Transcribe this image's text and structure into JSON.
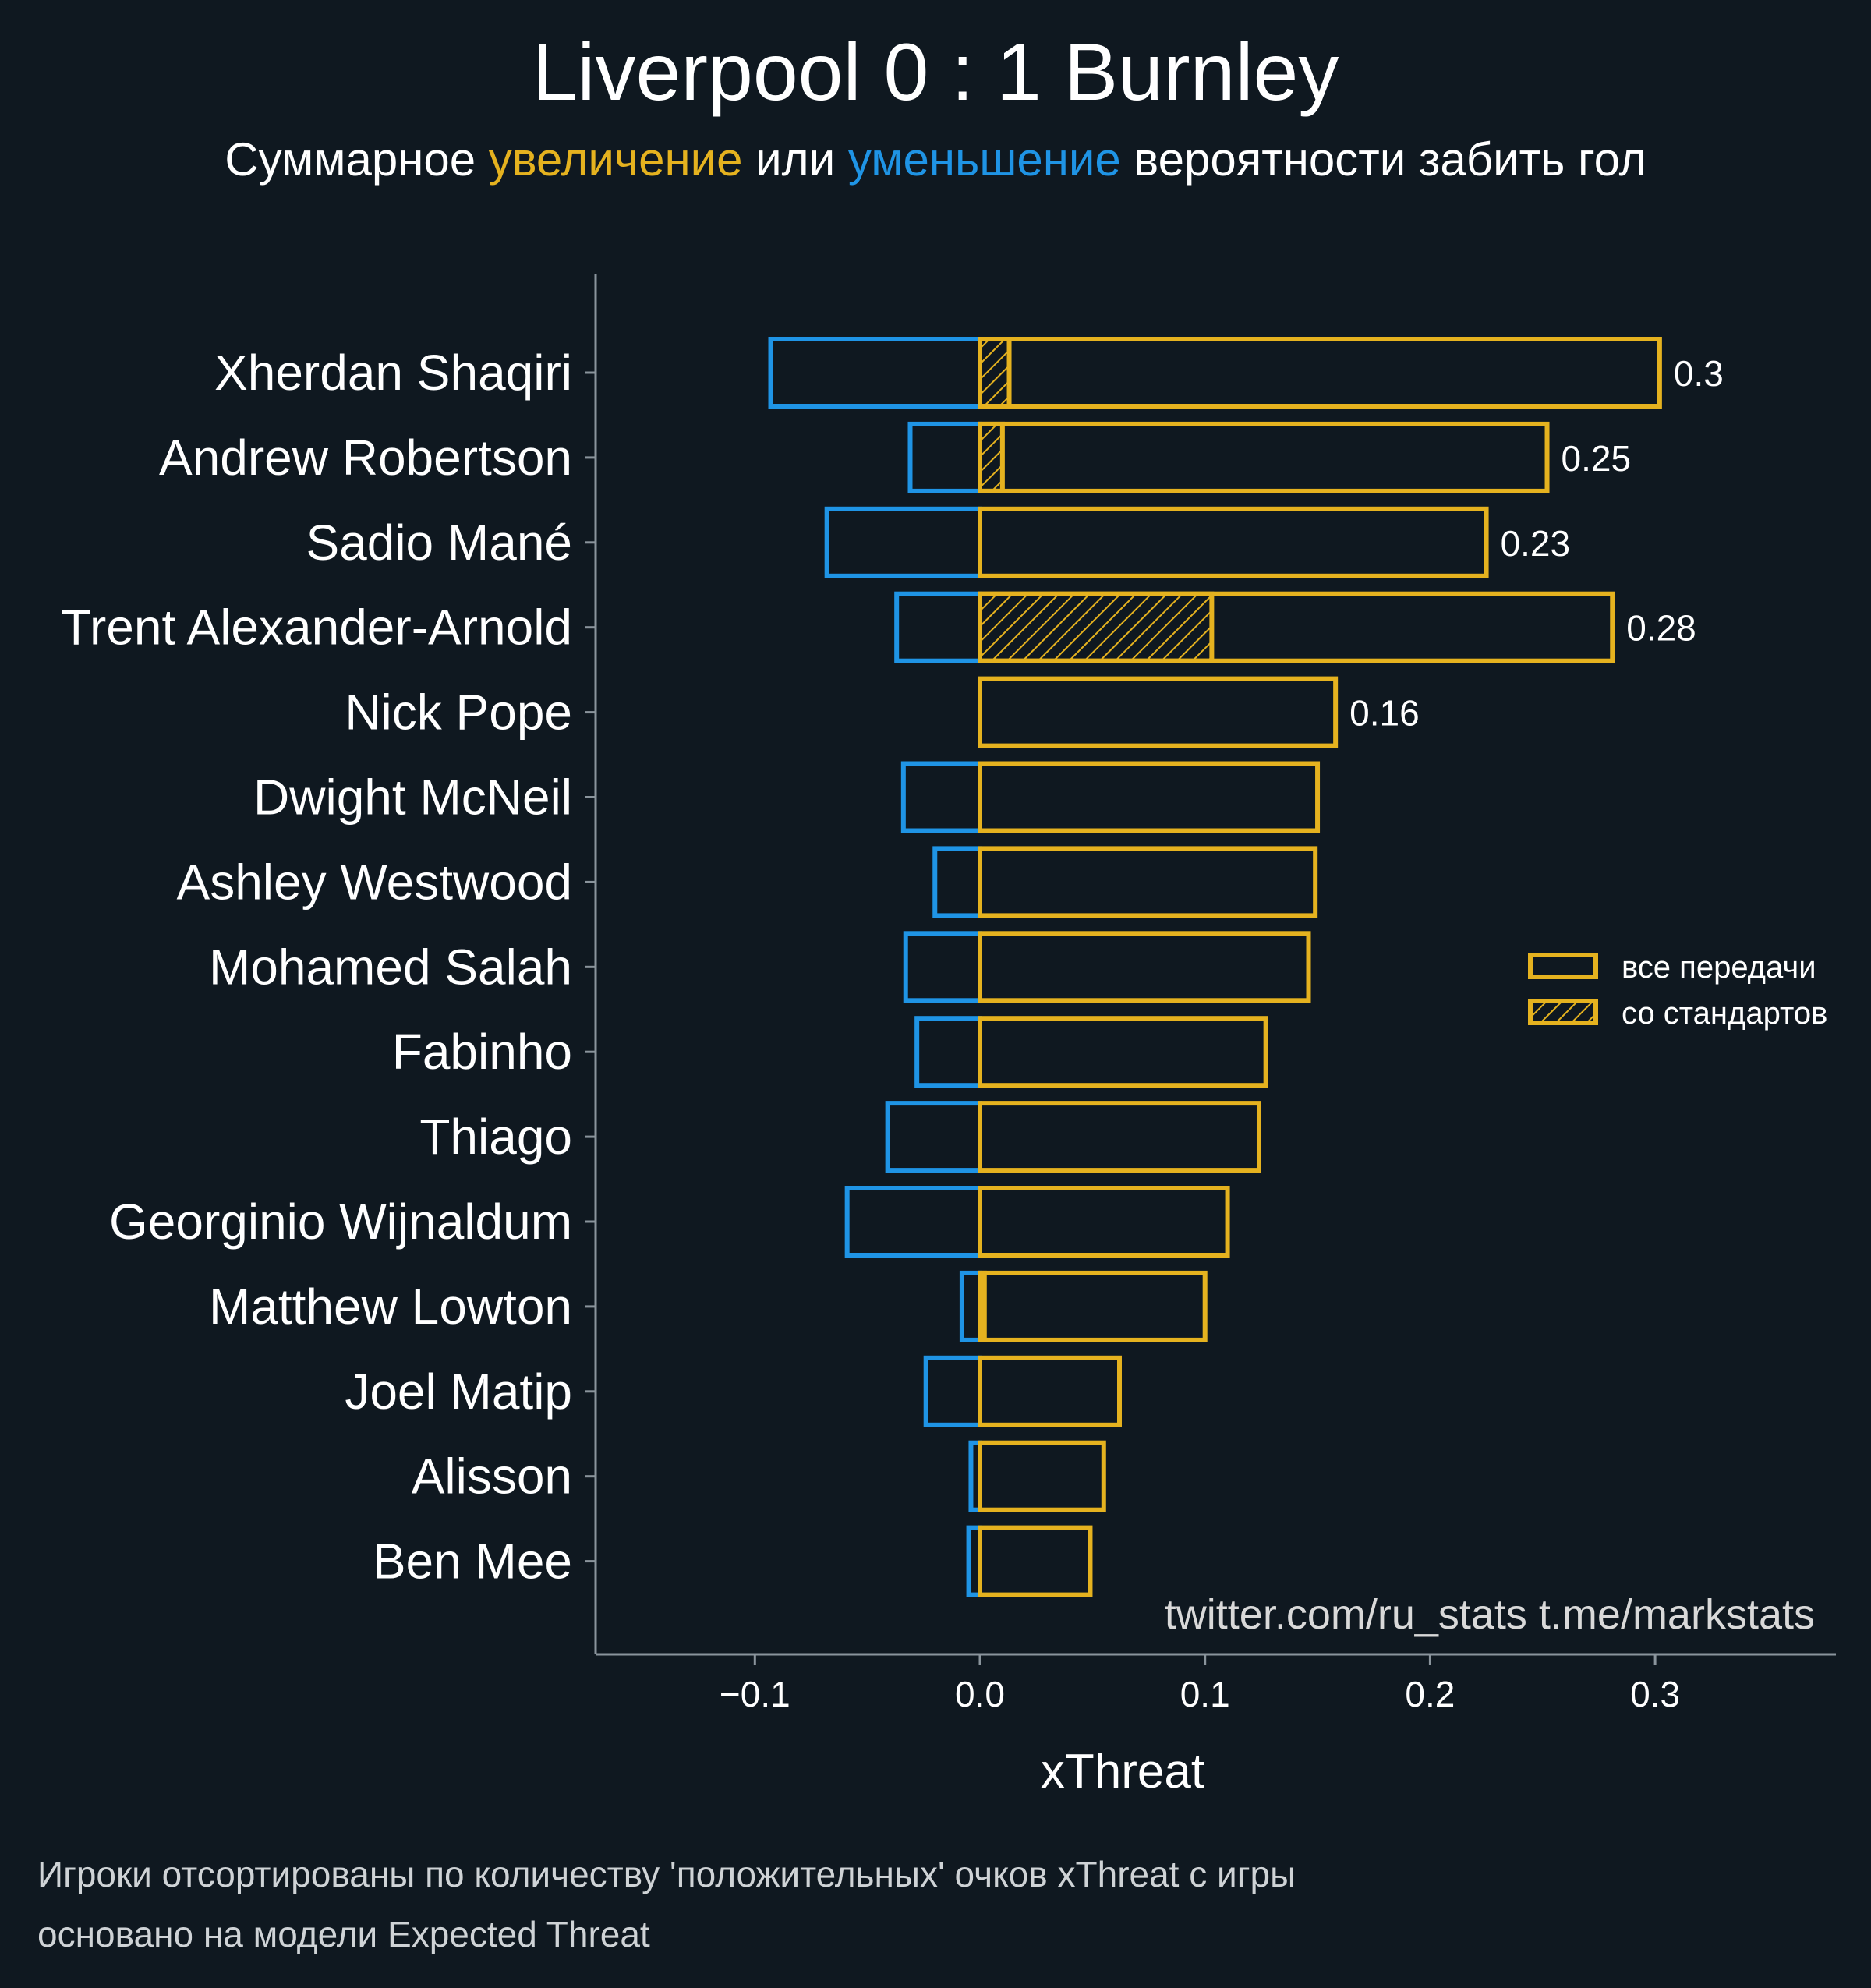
{
  "title": "Liverpool 0 : 1 Burnley",
  "subtitle": {
    "prefix": "Суммарное ",
    "increase": "увеличение",
    "middle": " или ",
    "decrease": "уменьшение",
    "suffix": " вероятности забить гол"
  },
  "colors": {
    "background": "#0f1820",
    "positive": "#e5b21f",
    "negative": "#1f94e5",
    "axis": "#8a949c",
    "text": "#ffffff"
  },
  "credit": "twitter.com/ru_stats  t.me/markstats",
  "footnote": [
    "Игроки отсортированы по количеству 'положительных' очков xThreat с игры",
    "основано на модели Expected Threat"
  ],
  "chart_data": {
    "type": "bar",
    "orientation": "horizontal",
    "xlabel": "xThreat",
    "xlim": [
      -0.17,
      0.38
    ],
    "xticks": [
      -0.1,
      0.0,
      0.1,
      0.2,
      0.3
    ],
    "xtick_labels": [
      "−0.1",
      "0.0",
      "0.1",
      "0.2",
      "0.3"
    ],
    "categories": [
      "Xherdan Shaqiri",
      "Andrew Robertson",
      "Sadio Mané",
      "Trent Alexander-Arnold",
      "Nick Pope",
      "Dwight McNeil",
      "Ashley Westwood",
      "Mohamed Salah",
      "Fabinho",
      "Thiago",
      "Georginio Wijnaldum",
      "Matthew Lowton",
      "Joel Matip",
      "Alisson",
      "Ben Mee"
    ],
    "series": [
      {
        "name": "все передачи",
        "values": [
          0.302,
          0.252,
          0.225,
          0.281,
          0.158,
          0.15,
          0.149,
          0.146,
          0.127,
          0.124,
          0.11,
          0.1,
          0.062,
          0.055,
          0.049
        ]
      },
      {
        "name": "со стандартов",
        "values": [
          0.013,
          0.01,
          0.0,
          0.103,
          0.0,
          0.0,
          0.0,
          0.0,
          0.0,
          0.0,
          0.0,
          0.002,
          0.0,
          0.0,
          0.0
        ]
      },
      {
        "values": [
          -0.093,
          -0.031,
          -0.068,
          -0.037,
          0.0,
          -0.034,
          -0.02,
          -0.033,
          -0.028,
          -0.041,
          -0.059,
          -0.008,
          -0.024,
          -0.004,
          -0.005
        ]
      }
    ],
    "data_labels": [
      "0.3",
      "0.25",
      "0.23",
      "0.28",
      "0.16",
      "",
      "",
      "",
      "",
      "",
      "",
      "",
      "",
      "",
      ""
    ],
    "legend": {
      "position": "right",
      "entries": [
        "все передачи",
        "со стандартов"
      ]
    },
    "grid": false
  }
}
